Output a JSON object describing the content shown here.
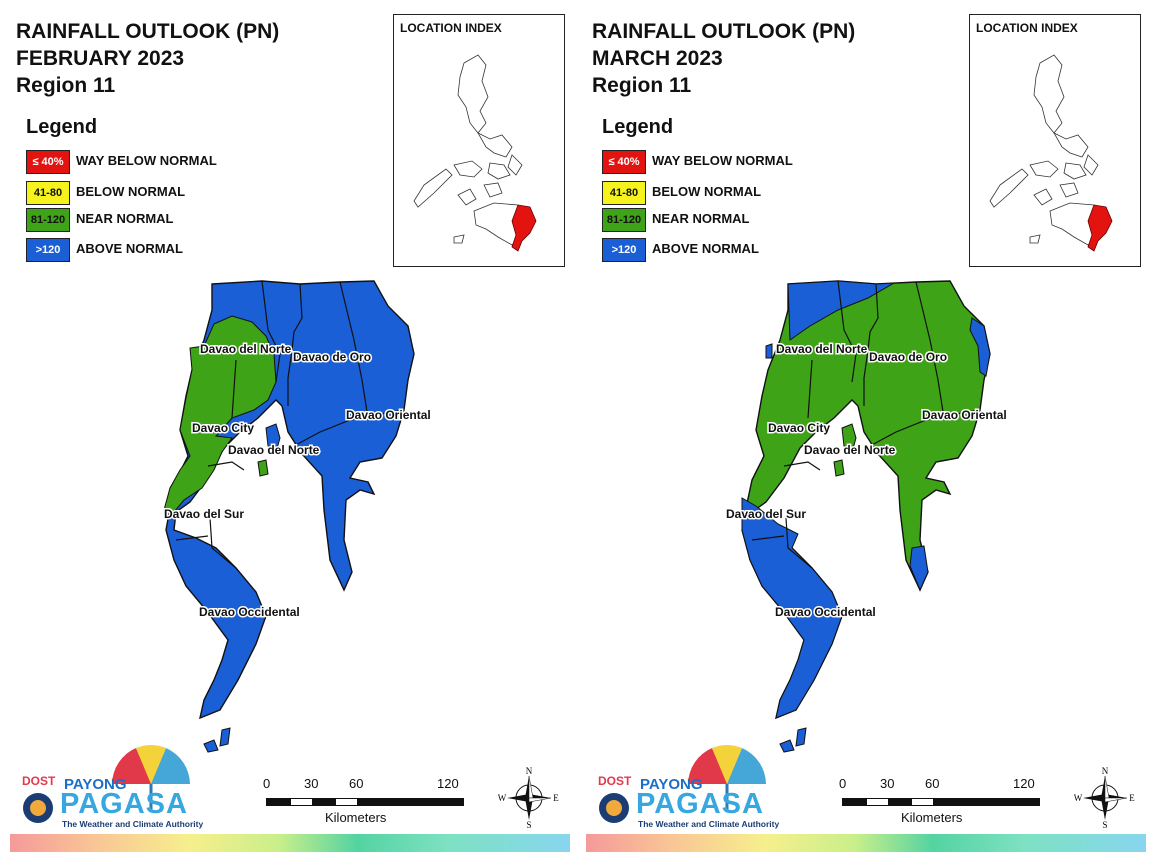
{
  "colors": {
    "way_below": "#e3140f",
    "below": "#f5f21e",
    "near": "#3fa318",
    "above": "#1a5fd6"
  },
  "legend": {
    "title": "Legend",
    "items": [
      {
        "code": "≤ 40%",
        "label": "WAY BELOW NORMAL",
        "color": "#e3140f",
        "text_color": "#ffffff"
      },
      {
        "code": "41-80",
        "label": "BELOW NORMAL",
        "color": "#f5f21e",
        "text_color": "#111111"
      },
      {
        "code": "81-120",
        "label": "NEAR NORMAL",
        "color": "#3fa318",
        "text_color": "#111111"
      },
      {
        "code": ">120",
        "label": "ABOVE NORMAL",
        "color": "#1a5fd6",
        "text_color": "#ffffff"
      }
    ]
  },
  "location_index": {
    "title": "LOCATION INDEX",
    "highlight_color": "#e3140f"
  },
  "scale_bar": {
    "ticks": [
      "0",
      "30",
      "60",
      "120"
    ],
    "unit": "Kilometers"
  },
  "compass": {
    "n": "N",
    "s": "S",
    "e": "E",
    "w": "W"
  },
  "logo": {
    "dost": "DOST",
    "payong": "PAYONG",
    "pagasa": "PAGASA",
    "tagline": "The Weather and Climate Authority"
  },
  "panels": [
    {
      "title_line1": "RAINFALL OUTLOOK (PN)",
      "title_line2": "FEBRUARY 2023",
      "title_line3": "Region 11",
      "map_labels": {
        "davao_del_norte": "Davao del Norte",
        "davao_de_oro": "Davao de Oro",
        "davao_oriental": "Davao Oriental",
        "davao_city": "Davao City",
        "davao_del_norte_island": "Davao del Norte",
        "davao_del_sur": "Davao del Sur",
        "davao_occidental": "Davao Occidental"
      },
      "categories": {
        "davao_del_norte": "mostly above; western part near normal",
        "davao_de_oro": "above normal",
        "davao_oriental": "above normal",
        "davao_city": "near normal",
        "davao_del_sur": "near normal (north) / above normal (south)",
        "davao_occidental": "above normal"
      }
    },
    {
      "title_line1": "RAINFALL OUTLOOK (PN)",
      "title_line2": "MARCH 2023",
      "title_line3": "Region 11",
      "map_labels": {
        "davao_del_norte": "Davao del Norte",
        "davao_de_oro": "Davao de Oro",
        "davao_oriental": "Davao Oriental",
        "davao_city": "Davao City",
        "davao_del_norte_island": "Davao del Norte",
        "davao_del_sur": "Davao del Sur",
        "davao_occidental": "Davao Occidental"
      },
      "categories": {
        "davao_del_norte": "mostly near normal; northern tip above normal",
        "davao_de_oro": "near normal",
        "davao_oriental": "near normal",
        "davao_city": "near normal",
        "davao_del_sur": "above normal",
        "davao_occidental": "above normal"
      }
    }
  ]
}
